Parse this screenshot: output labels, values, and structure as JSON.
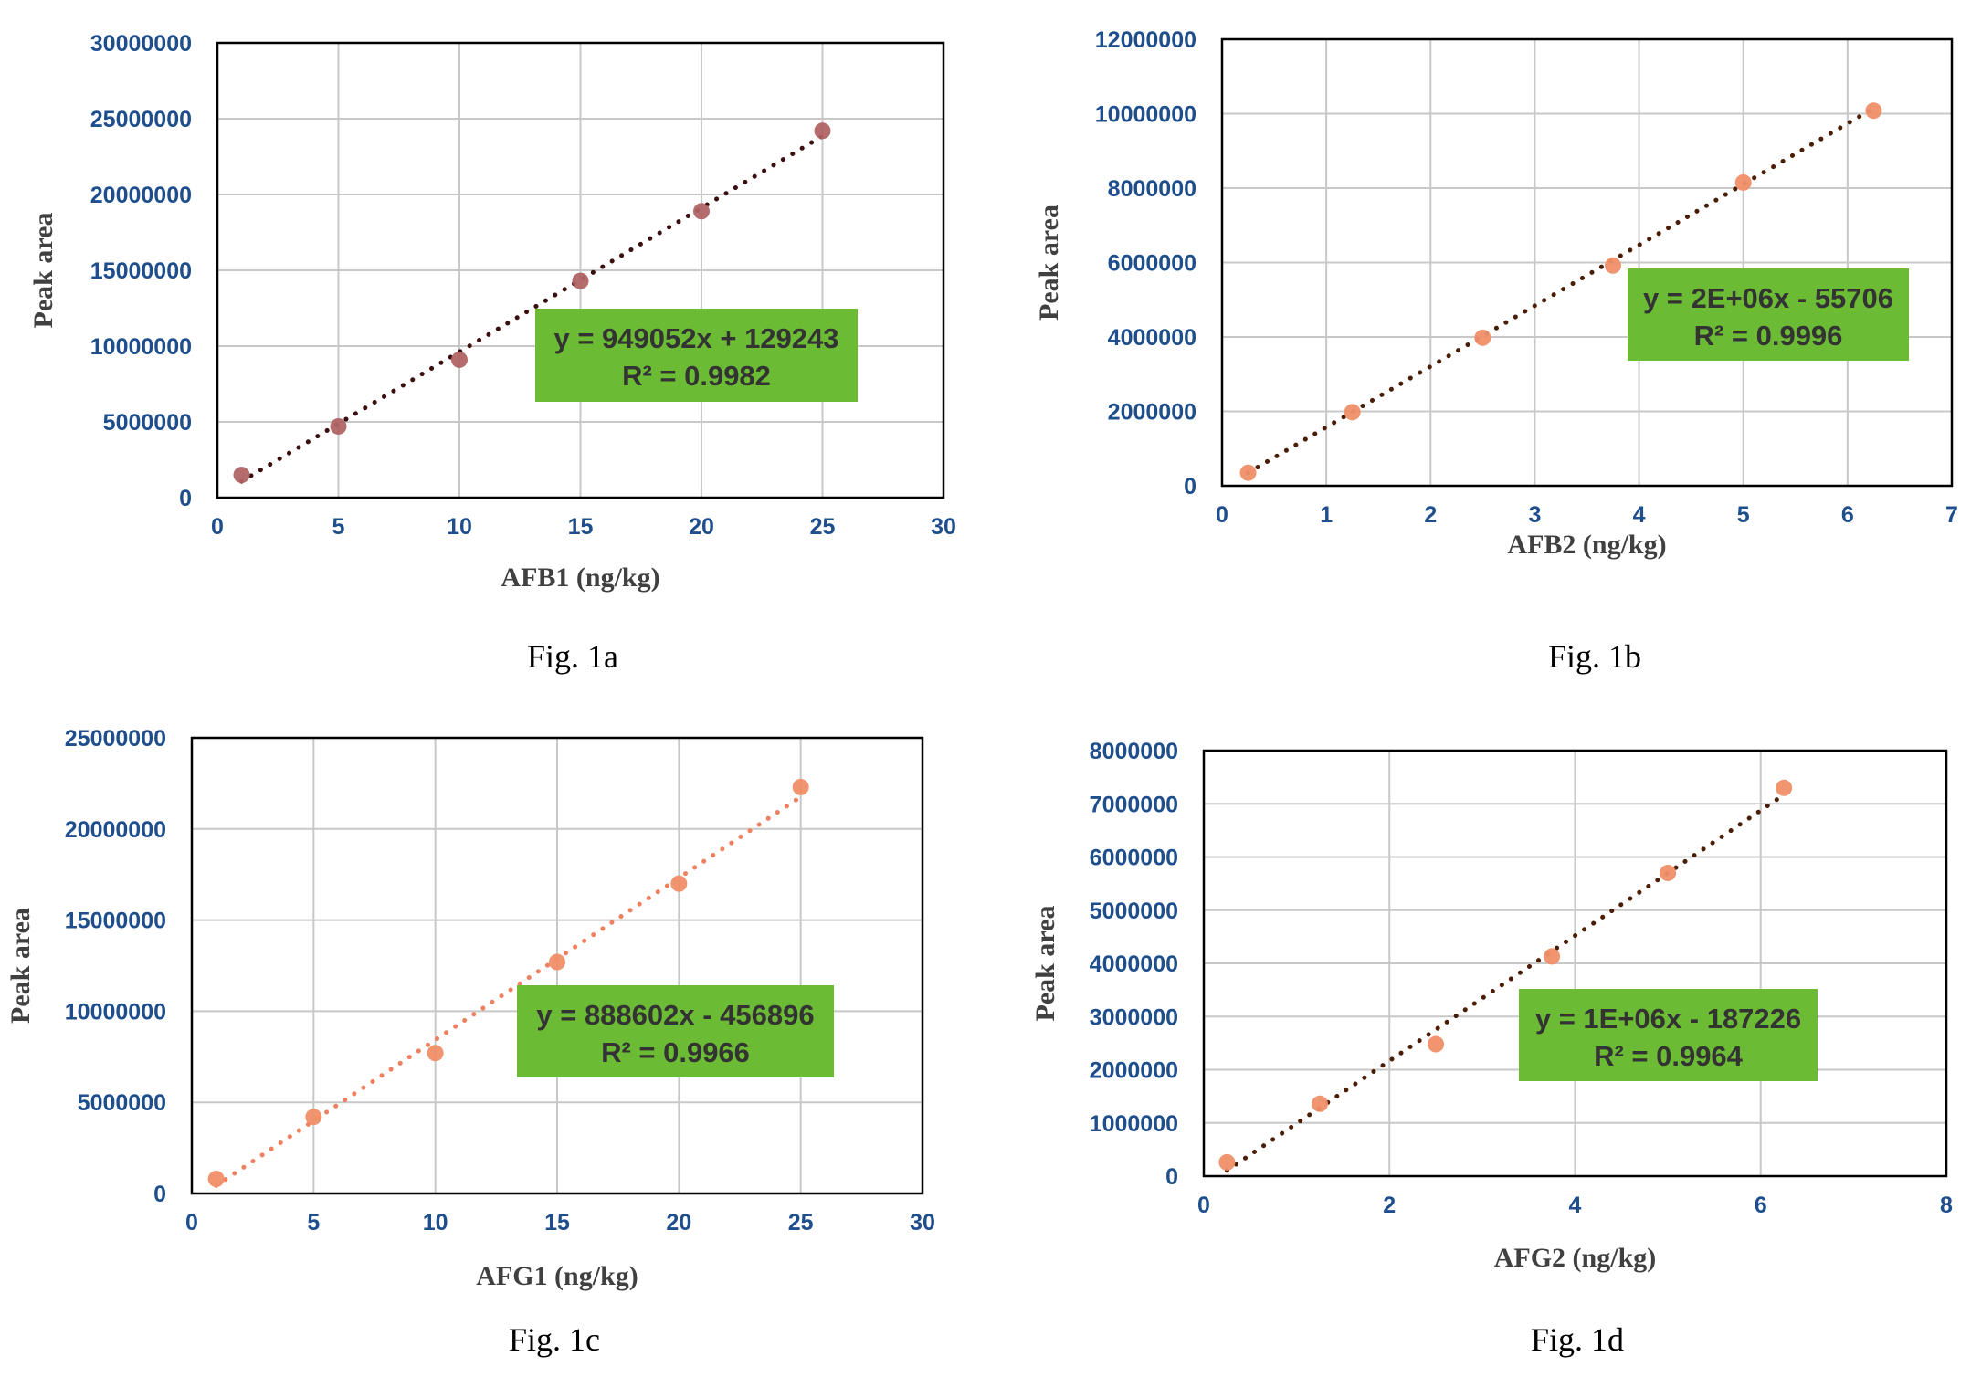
{
  "colors": {
    "tick_text": "#1f4e8c",
    "grid": "#c8c8c8",
    "frame": "#000000",
    "equation_box": "#6cbb34",
    "equation_text": "#333333"
  },
  "chart_data": [
    {
      "type": "scatter",
      "caption": "Fig. 1a",
      "xlabel": "AFB1 (ng/kg)",
      "ylabel": "Peak area",
      "xlim": [
        0,
        30
      ],
      "ylim": [
        0,
        30000000
      ],
      "xticks": [
        "0",
        "5",
        "10",
        "15",
        "20",
        "25",
        "30"
      ],
      "yticks": [
        "0",
        "5000000",
        "10000000",
        "15000000",
        "20000000",
        "25000000",
        "30000000"
      ],
      "grid": true,
      "marker_color": "#b06464",
      "trendline": {
        "style": "dotted",
        "color": "#3a0f0f",
        "slope": 949052,
        "intercept": 129243
      },
      "equation": "y = 949052x + 129243",
      "r2": "R² = 0.9982",
      "series": [
        {
          "x": [
            1,
            5,
            10,
            15,
            20,
            25
          ],
          "y": [
            1500000,
            4700000,
            9100000,
            14300000,
            18900000,
            24200000
          ]
        }
      ]
    },
    {
      "type": "scatter",
      "caption": "Fig. 1b",
      "xlabel": "AFB2 (ng/kg)",
      "ylabel": "Peak area",
      "xlim": [
        0,
        7
      ],
      "ylim": [
        0,
        12000000
      ],
      "xticks": [
        "0",
        "1",
        "2",
        "3",
        "4",
        "5",
        "6",
        "7"
      ],
      "yticks": [
        "0",
        "2000000",
        "4000000",
        "6000000",
        "8000000",
        "10000000",
        "12000000"
      ],
      "grid": true,
      "marker_color": "#ef8f68",
      "trendline": {
        "style": "dotted",
        "color": "#4a1d05",
        "slope": 1632000,
        "intercept": -55706
      },
      "equation": "y = 2E+06x - 55706",
      "r2": "R² = 0.9996",
      "series": [
        {
          "x": [
            0.25,
            1.25,
            2.5,
            3.75,
            5,
            6.25
          ],
          "y": [
            350000,
            1980000,
            3980000,
            5920000,
            8150000,
            10080000
          ]
        }
      ]
    },
    {
      "type": "scatter",
      "caption": "Fig. 1c",
      "xlabel": "AFG1 (ng/kg)",
      "ylabel": "Peak area",
      "xlim": [
        0,
        30
      ],
      "ylim": [
        0,
        25000000
      ],
      "xticks": [
        "0",
        "5",
        "10",
        "15",
        "20",
        "25",
        "30"
      ],
      "yticks": [
        "0",
        "5000000",
        "10000000",
        "15000000",
        "20000000",
        "25000000"
      ],
      "grid": true,
      "marker_color": "#ef8f68",
      "trendline": {
        "style": "dotted",
        "color": "#ef8060",
        "slope": 888602,
        "intercept": -456896
      },
      "equation": "y = 888602x - 456896",
      "r2": "R² = 0.9966",
      "series": [
        {
          "x": [
            1,
            5,
            10,
            15,
            20,
            25
          ],
          "y": [
            800000,
            4200000,
            7700000,
            12700000,
            17000000,
            22300000
          ]
        }
      ]
    },
    {
      "type": "scatter",
      "caption": "Fig. 1d",
      "xlabel": "AFG2 (ng/kg)",
      "ylabel": "Peak area",
      "xlim": [
        0,
        8
      ],
      "ylim": [
        0,
        8000000
      ],
      "xticks": [
        "0",
        "2",
        "4",
        "6",
        "8"
      ],
      "yticks": [
        "0",
        "1000000",
        "2000000",
        "3000000",
        "4000000",
        "5000000",
        "6000000",
        "7000000",
        "8000000"
      ],
      "grid": true,
      "marker_color": "#ef8f68",
      "trendline": {
        "style": "dotted",
        "color": "#4a1d05",
        "slope": 1177000,
        "intercept": -187226
      },
      "equation": "y = 1E+06x - 187226",
      "r2": "R² = 0.9964",
      "series": [
        {
          "x": [
            0.25,
            1.25,
            2.5,
            3.75,
            5,
            6.25
          ],
          "y": [
            260000,
            1360000,
            2480000,
            4130000,
            5700000,
            7300000
          ]
        }
      ]
    }
  ]
}
